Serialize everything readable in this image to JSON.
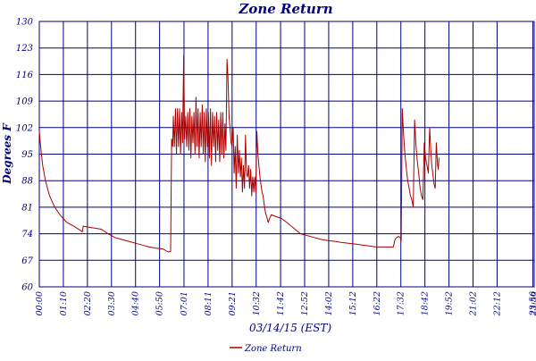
{
  "chart_data": {
    "type": "line",
    "title": "Zone Return",
    "xlabel": "03/14/15 (EST)",
    "ylabel": "Degrees F",
    "ylim": [
      60,
      130
    ],
    "yticks": [
      "130",
      "123",
      "116",
      "109",
      "102",
      "95",
      "88",
      "81",
      "74",
      "67",
      "60"
    ],
    "xlim": [
      0,
      1440
    ],
    "xticks": [
      {
        "t": 0,
        "label": "00:00"
      },
      {
        "t": 70,
        "label": "01:10"
      },
      {
        "t": 140,
        "label": "02:20"
      },
      {
        "t": 210,
        "label": "03:30"
      },
      {
        "t": 280,
        "label": "04:40"
      },
      {
        "t": 350,
        "label": "05:50"
      },
      {
        "t": 421,
        "label": "07:01"
      },
      {
        "t": 491,
        "label": "08:11"
      },
      {
        "t": 561,
        "label": "09:21"
      },
      {
        "t": 631,
        "label": "10:32"
      },
      {
        "t": 702,
        "label": "11:42"
      },
      {
        "t": 772,
        "label": "12:52"
      },
      {
        "t": 842,
        "label": "14:02"
      },
      {
        "t": 912,
        "label": "15:12"
      },
      {
        "t": 982,
        "label": "16:22"
      },
      {
        "t": 1052,
        "label": "17:32"
      },
      {
        "t": 1122,
        "label": "18:42"
      },
      {
        "t": 1192,
        "label": "19:52"
      },
      {
        "t": 1262,
        "label": "21:02"
      },
      {
        "t": 1332,
        "label": "22:12"
      },
      {
        "t": 1436,
        "label": "23:56"
      },
      {
        "t": 1440,
        "label": "23:59"
      }
    ],
    "grid": true,
    "legend_position": "bottom-left",
    "series": [
      {
        "name": "Zone Return",
        "color": "#aa0000",
        "points": [
          [
            0,
            101
          ],
          [
            5,
            96
          ],
          [
            10,
            92
          ],
          [
            18,
            88
          ],
          [
            30,
            84
          ],
          [
            45,
            81
          ],
          [
            60,
            79
          ],
          [
            80,
            77
          ],
          [
            100,
            76
          ],
          [
            118,
            75
          ],
          [
            125,
            74.5
          ],
          [
            128,
            76
          ],
          [
            140,
            75.8
          ],
          [
            160,
            75.5
          ],
          [
            180,
            75.2
          ],
          [
            200,
            74
          ],
          [
            220,
            73
          ],
          [
            240,
            72.5
          ],
          [
            260,
            72
          ],
          [
            280,
            71.5
          ],
          [
            300,
            71
          ],
          [
            320,
            70.5
          ],
          [
            340,
            70.2
          ],
          [
            360,
            70
          ],
          [
            375,
            69.2
          ],
          [
            382,
            69.3
          ],
          [
            385,
            99
          ],
          [
            388,
            97
          ],
          [
            390,
            105
          ],
          [
            393,
            97
          ],
          [
            396,
            107
          ],
          [
            399,
            95
          ],
          [
            402,
            107
          ],
          [
            405,
            97
          ],
          [
            408,
            107
          ],
          [
            411,
            95
          ],
          [
            414,
            106
          ],
          [
            417,
            98
          ],
          [
            420,
            121
          ],
          [
            423,
            99
          ],
          [
            426,
            105
          ],
          [
            429,
            97
          ],
          [
            432,
            106
          ],
          [
            435,
            96
          ],
          [
            438,
            107
          ],
          [
            441,
            94
          ],
          [
            444,
            105
          ],
          [
            447,
            98
          ],
          [
            450,
            106
          ],
          [
            453,
            95
          ],
          [
            456,
            110
          ],
          [
            459,
            97
          ],
          [
            462,
            107
          ],
          [
            465,
            94
          ],
          [
            468,
            106
          ],
          [
            471,
            97
          ],
          [
            474,
            108
          ],
          [
            477,
            95
          ],
          [
            480,
            106
          ],
          [
            483,
            93
          ],
          [
            486,
            107
          ],
          [
            489,
            97
          ],
          [
            492,
            106
          ],
          [
            495,
            94
          ],
          [
            498,
            107
          ],
          [
            501,
            92
          ],
          [
            504,
            106
          ],
          [
            507,
            97
          ],
          [
            510,
            105
          ],
          [
            513,
            93
          ],
          [
            516,
            106
          ],
          [
            519,
            96
          ],
          [
            522,
            104
          ],
          [
            525,
            93
          ],
          [
            528,
            106
          ],
          [
            531,
            95
          ],
          [
            534,
            106
          ],
          [
            537,
            94
          ],
          [
            540,
            103
          ],
          [
            543,
            96
          ],
          [
            546,
            120
          ],
          [
            549,
            115
          ],
          [
            552,
            105
          ],
          [
            555,
            102
          ],
          [
            558,
            98
          ],
          [
            561,
            97
          ],
          [
            564,
            102
          ],
          [
            567,
            90
          ],
          [
            570,
            97
          ],
          [
            573,
            86
          ],
          [
            576,
            100
          ],
          [
            579,
            90
          ],
          [
            582,
            96
          ],
          [
            585,
            89
          ],
          [
            588,
            94
          ],
          [
            591,
            85
          ],
          [
            594,
            92
          ],
          [
            597,
            86
          ],
          [
            600,
            100
          ],
          [
            603,
            90
          ],
          [
            606,
            89
          ],
          [
            609,
            92
          ],
          [
            612,
            86
          ],
          [
            615,
            91
          ],
          [
            618,
            84
          ],
          [
            621,
            89
          ],
          [
            624,
            85
          ],
          [
            627,
            89
          ],
          [
            630,
            85
          ],
          [
            633,
            101
          ],
          [
            636,
            95
          ],
          [
            639,
            92
          ],
          [
            642,
            89
          ],
          [
            645,
            87
          ],
          [
            648,
            85
          ],
          [
            651,
            84
          ],
          [
            654,
            82
          ],
          [
            657,
            80
          ],
          [
            660,
            79
          ],
          [
            663,
            78
          ],
          [
            666,
            77
          ],
          [
            670,
            78
          ],
          [
            675,
            79
          ],
          [
            690,
            78.5
          ],
          [
            705,
            78
          ],
          [
            720,
            77
          ],
          [
            740,
            75.5
          ],
          [
            760,
            74
          ],
          [
            780,
            73.5
          ],
          [
            800,
            73
          ],
          [
            820,
            72.5
          ],
          [
            840,
            72.2
          ],
          [
            860,
            72
          ],
          [
            880,
            71.7
          ],
          [
            900,
            71.5
          ],
          [
            920,
            71.3
          ],
          [
            940,
            71
          ],
          [
            960,
            70.8
          ],
          [
            980,
            70.5
          ],
          [
            1000,
            70.5
          ],
          [
            1020,
            70.5
          ],
          [
            1030,
            70.5
          ],
          [
            1035,
            72.5
          ],
          [
            1040,
            73
          ],
          [
            1045,
            73.3
          ],
          [
            1050,
            73
          ],
          [
            1053,
            72
          ],
          [
            1056,
            107
          ],
          [
            1060,
            100
          ],
          [
            1064,
            95
          ],
          [
            1068,
            91
          ],
          [
            1072,
            88
          ],
          [
            1076,
            86
          ],
          [
            1080,
            84
          ],
          [
            1084,
            83
          ],
          [
            1088,
            81
          ],
          [
            1092,
            104
          ],
          [
            1096,
            97
          ],
          [
            1100,
            93
          ],
          [
            1104,
            90
          ],
          [
            1108,
            86
          ],
          [
            1112,
            84
          ],
          [
            1116,
            83
          ],
          [
            1120,
            98
          ],
          [
            1124,
            94
          ],
          [
            1128,
            92
          ],
          [
            1132,
            90
          ],
          [
            1136,
            102
          ],
          [
            1139,
            96
          ],
          [
            1142,
            92
          ],
          [
            1146,
            89
          ],
          [
            1149,
            87
          ],
          [
            1152,
            86
          ],
          [
            1155,
            98
          ],
          [
            1157,
            95
          ],
          [
            1159,
            92
          ],
          [
            1161,
            91
          ],
          [
            1163,
            94
          ]
        ]
      }
    ]
  }
}
